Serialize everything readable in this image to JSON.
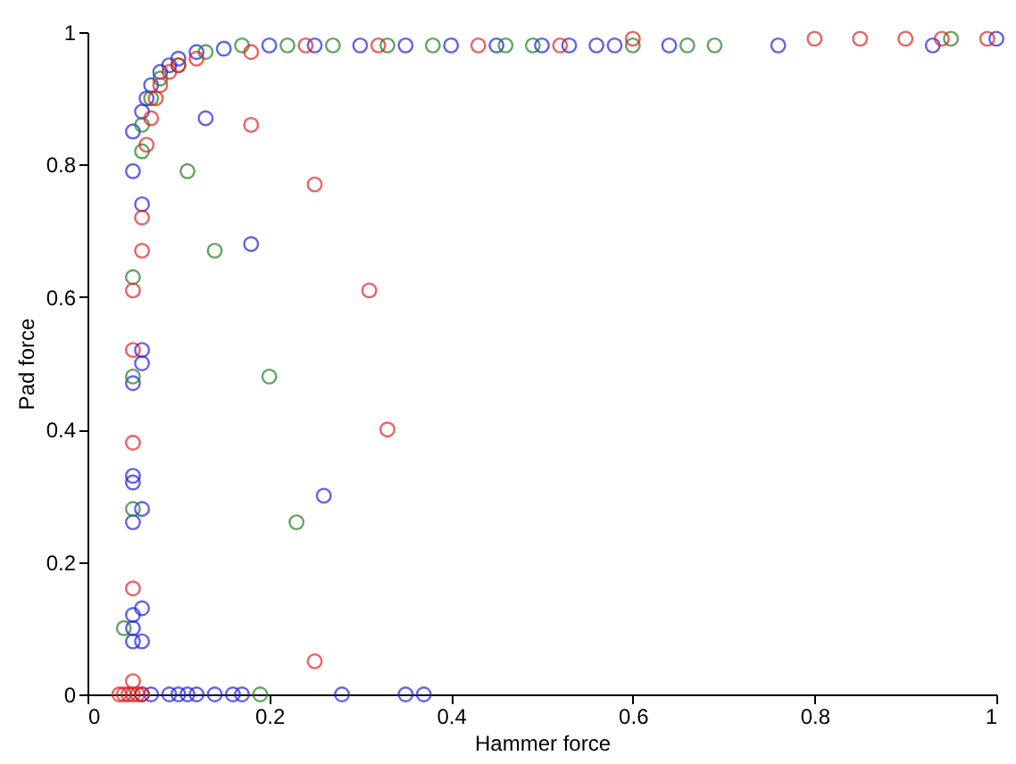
{
  "chart_data": {
    "type": "scatter",
    "xlabel": "Hammer force",
    "ylabel": "Pad force",
    "xlim": [
      0,
      1
    ],
    "ylim": [
      0,
      1
    ],
    "xticks": [
      0,
      0.2,
      0.4,
      0.6,
      0.8,
      1
    ],
    "yticks": [
      0,
      0.2,
      0.4,
      0.6,
      0.8,
      1
    ],
    "grid": false,
    "legend": false,
    "marker": "circle",
    "series": [
      {
        "color": "#2020e0",
        "x": [
          0.13,
          0.18,
          0.26,
          0.28,
          0.35,
          0.37,
          0.05,
          0.06,
          0.06,
          0.06,
          0.05,
          0.05,
          0.05,
          0.06,
          0.05,
          0.06,
          0.05,
          0.05,
          0.06,
          0.05,
          0.06,
          0.07,
          0.09,
          0.1,
          0.11,
          0.12,
          0.14,
          0.16,
          0.17,
          0.05,
          0.06,
          0.065,
          0.07,
          0.08,
          0.09,
          0.1,
          0.12,
          0.15,
          0.2,
          0.25,
          0.3,
          0.35,
          0.4,
          0.45,
          0.5,
          0.53,
          0.56,
          0.58,
          0.64,
          0.76,
          0.93,
          1.0
        ],
        "values": [
          0.87,
          0.68,
          0.3,
          0,
          0,
          0,
          0.79,
          0.74,
          0.52,
          0.5,
          0.47,
          0.33,
          0.32,
          0.28,
          0.26,
          0.13,
          0.12,
          0.1,
          0.08,
          0.08,
          0,
          0,
          0,
          0,
          0,
          0,
          0,
          0,
          0,
          0.85,
          0.88,
          0.9,
          0.92,
          0.94,
          0.95,
          0.96,
          0.97,
          0.975,
          0.98,
          0.98,
          0.98,
          0.98,
          0.98,
          0.98,
          0.98,
          0.98,
          0.98,
          0.98,
          0.98,
          0.98,
          0.98,
          0.99
        ]
      },
      {
        "color": "#208020",
        "x": [
          0.11,
          0.14,
          0.2,
          0.23,
          0.19,
          0.05,
          0.05,
          0.05,
          0.04,
          0.06,
          0.06,
          0.07,
          0.08,
          0.1,
          0.13,
          0.17,
          0.22,
          0.27,
          0.33,
          0.38,
          0.46,
          0.49,
          0.6,
          0.66,
          0.69,
          0.95
        ],
        "values": [
          0.79,
          0.67,
          0.48,
          0.26,
          0,
          0.28,
          0.48,
          0.63,
          0.1,
          0.82,
          0.86,
          0.9,
          0.93,
          0.95,
          0.97,
          0.98,
          0.98,
          0.98,
          0.98,
          0.98,
          0.98,
          0.98,
          0.98,
          0.98,
          0.98,
          0.99
        ]
      },
      {
        "color": "#e02020",
        "x": [
          0.18,
          0.25,
          0.31,
          0.33,
          0.25,
          0.05,
          0.05,
          0.05,
          0.05,
          0.05,
          0.06,
          0.06,
          0.035,
          0.04,
          0.045,
          0.05,
          0.055,
          0.06,
          0.065,
          0.07,
          0.075,
          0.08,
          0.09,
          0.1,
          0.12,
          0.18,
          0.24,
          0.32,
          0.43,
          0.52,
          0.6,
          0.8,
          0.85,
          0.9,
          0.94,
          0.99
        ],
        "values": [
          0.86,
          0.77,
          0.61,
          0.4,
          0.05,
          0.38,
          0.16,
          0.02,
          0.52,
          0.61,
          0.67,
          0.72,
          0,
          0,
          0,
          0,
          0,
          0,
          0.83,
          0.87,
          0.9,
          0.92,
          0.94,
          0.95,
          0.96,
          0.97,
          0.98,
          0.98,
          0.98,
          0.98,
          0.99,
          0.99,
          0.99,
          0.99,
          0.99,
          0.99
        ]
      }
    ]
  }
}
